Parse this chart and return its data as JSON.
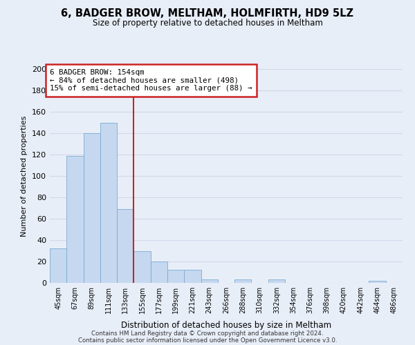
{
  "title": "6, BADGER BROW, MELTHAM, HOLMFIRTH, HD9 5LZ",
  "subtitle": "Size of property relative to detached houses in Meltham",
  "xlabel": "Distribution of detached houses by size in Meltham",
  "ylabel": "Number of detached properties",
  "bin_labels": [
    "45sqm",
    "67sqm",
    "89sqm",
    "111sqm",
    "133sqm",
    "155sqm",
    "177sqm",
    "199sqm",
    "221sqm",
    "243sqm",
    "266sqm",
    "288sqm",
    "310sqm",
    "332sqm",
    "354sqm",
    "376sqm",
    "398sqm",
    "420sqm",
    "442sqm",
    "464sqm",
    "486sqm"
  ],
  "bar_heights": [
    32,
    119,
    140,
    150,
    69,
    30,
    20,
    12,
    12,
    3,
    0,
    3,
    0,
    3,
    0,
    0,
    0,
    0,
    0,
    2,
    0
  ],
  "bar_color": "#c5d8f0",
  "bar_edge_color": "#7aaad0",
  "vline_x_index": 5,
  "ylim": [
    0,
    200
  ],
  "yticks": [
    0,
    20,
    40,
    60,
    80,
    100,
    120,
    140,
    160,
    180,
    200
  ],
  "annotation_title": "6 BADGER BROW: 154sqm",
  "annotation_line1": "← 84% of detached houses are smaller (498)",
  "annotation_line2": "15% of semi-detached houses are larger (88) →",
  "annotation_box_color": "#ffffff",
  "annotation_box_edge": "#cc2222",
  "vline_color": "#cc2222",
  "footer1": "Contains HM Land Registry data © Crown copyright and database right 2024.",
  "footer2": "Contains public sector information licensed under the Open Government Licence v3.0.",
  "background_color": "#e8eef8",
  "grid_color": "#d0d8e8"
}
